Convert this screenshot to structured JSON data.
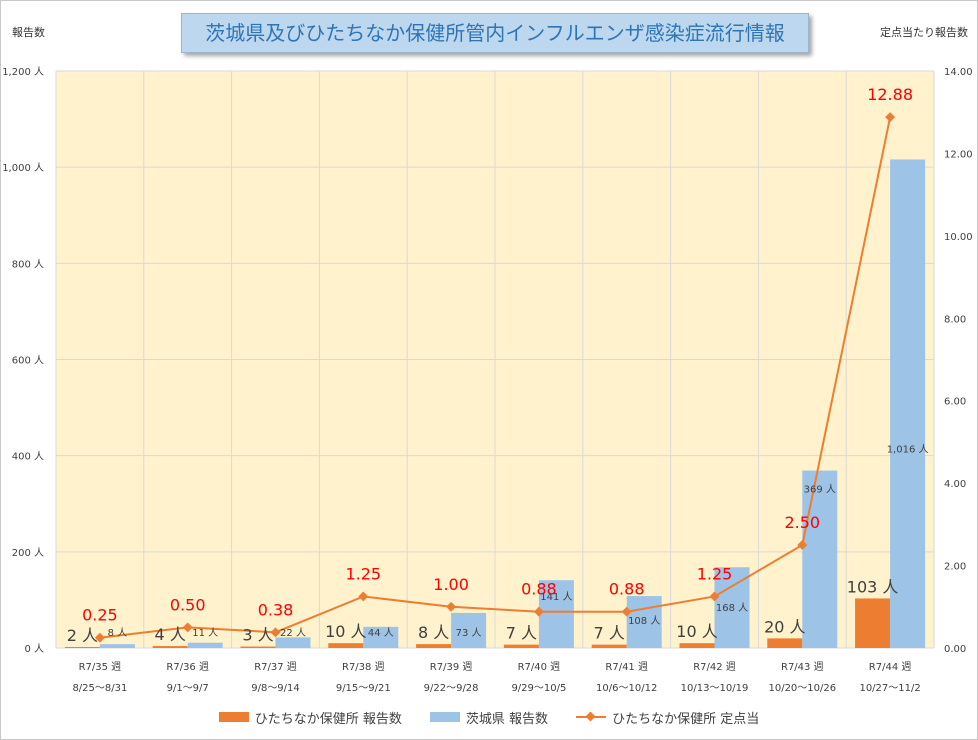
{
  "title": "茨城県及びひたちなか保健所管内インフルエンザ感染症流行情報",
  "colors": {
    "hitachinaka": "#ed7d31",
    "ibaraki": "#9dc3e6",
    "plot_bg": "#fff2cc",
    "grid": "#d9d9d9",
    "line_label": "#ff0000"
  },
  "chart_data": {
    "type": "bar",
    "title": "茨城県及びひたちなか保健所管内インフルエンザ感染症流行情報",
    "ylabel": "報告数",
    "y2label": "定点当たり報告数",
    "ylim": [
      0,
      1200
    ],
    "y2lim": [
      0,
      14
    ],
    "yticks": [
      "0 人",
      "200 人",
      "400 人",
      "600 人",
      "800 人",
      "1,000 人",
      "1,200 人"
    ],
    "y2ticks": [
      "0.00",
      "2.00",
      "4.00",
      "6.00",
      "8.00",
      "10.00",
      "12.00",
      "14.00"
    ],
    "grid": true,
    "legend_position": "bottom",
    "categories": [
      {
        "week": "R7/35 週",
        "range": "8/25～8/31"
      },
      {
        "week": "R7/36 週",
        "range": "9/1～9/7"
      },
      {
        "week": "R7/37 週",
        "range": "9/8～9/14"
      },
      {
        "week": "R7/38 週",
        "range": "9/15～9/21"
      },
      {
        "week": "R7/39 週",
        "range": "9/22～9/28"
      },
      {
        "week": "R7/40 週",
        "range": "9/29～10/5"
      },
      {
        "week": "R7/41 週",
        "range": "10/6～10/12"
      },
      {
        "week": "R7/42 週",
        "range": "10/13～10/19"
      },
      {
        "week": "R7/43 週",
        "range": "10/20～10/26"
      },
      {
        "week": "R7/44 週",
        "range": "10/27～11/2"
      }
    ],
    "series": [
      {
        "name": "ひたちなか保健所 報告数",
        "type": "bar",
        "axis": "left",
        "values": [
          2,
          4,
          3,
          10,
          8,
          7,
          7,
          10,
          20,
          103
        ],
        "labels": [
          "2 人",
          "4 人",
          "3 人",
          "10 人",
          "8 人",
          "7 人",
          "7 人",
          "10 人",
          "20 人",
          "103 人"
        ]
      },
      {
        "name": "茨城県 報告数",
        "type": "bar",
        "axis": "left",
        "values": [
          8,
          11,
          22,
          44,
          73,
          141,
          108,
          168,
          369,
          1016
        ],
        "labels": [
          "8 人",
          "11 人",
          "22 人",
          "44 人",
          "73 人",
          "141 人",
          "108 人",
          "168 人",
          "369 人",
          "1,016 人"
        ]
      },
      {
        "name": "ひたちなか保健所 定点当",
        "type": "line",
        "axis": "right",
        "values": [
          0.25,
          0.5,
          0.38,
          1.25,
          1.0,
          0.88,
          0.88,
          1.25,
          2.5,
          12.88
        ],
        "labels": [
          "0.25",
          "0.50",
          "0.38",
          "1.25",
          "1.00",
          "0.88",
          "0.88",
          "1.25",
          "2.50",
          "12.88"
        ]
      }
    ]
  }
}
